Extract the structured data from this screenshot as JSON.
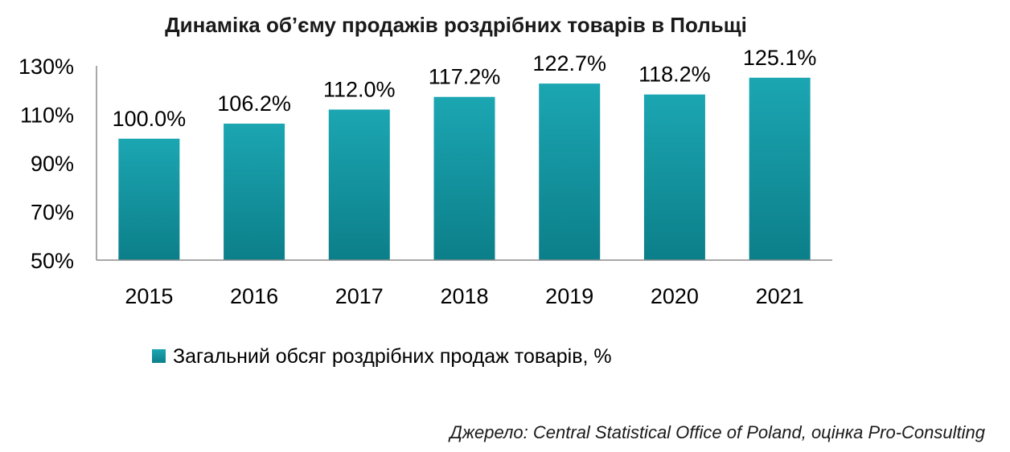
{
  "chart_data": {
    "type": "bar",
    "title": "Динаміка об’єму продажів роздрібних товарів в Польщі",
    "categories": [
      "2015",
      "2016",
      "2017",
      "2018",
      "2019",
      "2020",
      "2021"
    ],
    "series": [
      {
        "name": "Загальний обсяг роздрібних продаж товарів, %",
        "values": [
          100.0,
          106.2,
          112.0,
          117.2,
          122.7,
          118.2,
          125.1
        ],
        "labels": [
          "100.0%",
          "106.2%",
          "112.0%",
          "117.2%",
          "122.7%",
          "118.2%",
          "125.1%"
        ]
      }
    ],
    "ylim": [
      50,
      130
    ],
    "yticks": [
      50,
      70,
      90,
      110,
      130
    ],
    "ytick_labels": [
      "50%",
      "70%",
      "90%",
      "110%",
      "130%"
    ],
    "grid": false,
    "legend_position": "bottom",
    "colors": {
      "bar_top": "#1BA6B2",
      "bar_bottom": "#0C7F89"
    }
  },
  "source": "Джерело: Central Statistical Office of Poland, оцінка Pro-Consulting"
}
